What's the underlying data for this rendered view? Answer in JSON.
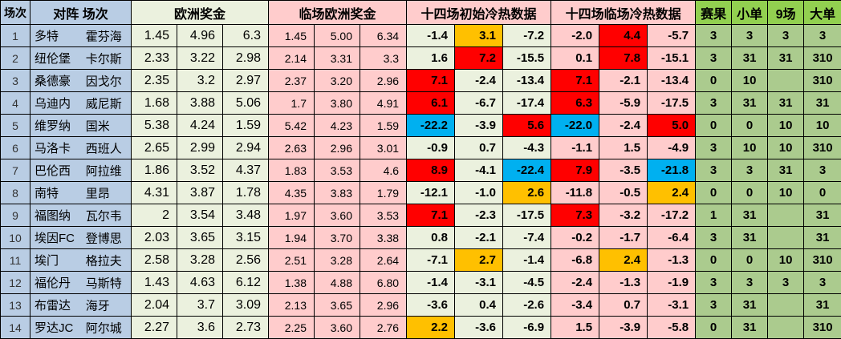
{
  "header": {
    "match_no": "场次",
    "matchup": "对阵 场次",
    "euro_odds": "欧洲奖金",
    "live_euro_odds": "临场欧洲奖金",
    "initial_cold_hot": "十四场初始冷热数据",
    "live_cold_hot": "十四场临场冷热数据",
    "result": "赛果",
    "small_single": "小单",
    "nine_games": "9场",
    "big_single": "大单"
  },
  "colors": {
    "header_blue": "#B9CDE4",
    "light_green": "#EBF1DE",
    "pink": "#FFCCCC",
    "bright_green_header": "#92D050",
    "green_data": "#ABCB8E",
    "highlight_red": "#FF0000",
    "highlight_orange": "#FFC000",
    "highlight_blue": "#00B0F0",
    "corner_mark_green": "#1E7145"
  },
  "rows": [
    {
      "no": "1",
      "home": "多特",
      "away": "霍芬海",
      "euro": [
        "1.45",
        "4.96",
        "6.3"
      ],
      "live_euro": [
        "1.45",
        "5.00",
        "6.34"
      ],
      "init": [
        {
          "v": "-1.4"
        },
        {
          "v": "3.1",
          "bg": "orange"
        },
        {
          "v": "-7.2"
        }
      ],
      "live": [
        {
          "v": "-2.0"
        },
        {
          "v": "4.4",
          "bg": "red"
        },
        {
          "v": "-5.7"
        }
      ],
      "result": "3",
      "small": {
        "v": "3",
        "mark": true
      },
      "nine": "3",
      "big": {
        "v": "3",
        "mark": true
      }
    },
    {
      "no": "2",
      "home": "纽伦堡",
      "away": "卡尔斯",
      "euro": [
        "2.33",
        "3.22",
        "2.98"
      ],
      "live_euro": [
        "2.14",
        "3.31",
        "3.3"
      ],
      "init": [
        {
          "v": "1.6"
        },
        {
          "v": "7.2",
          "bg": "red"
        },
        {
          "v": "-15.5"
        }
      ],
      "live": [
        {
          "v": "0.1"
        },
        {
          "v": "7.8",
          "bg": "red"
        },
        {
          "v": "-15.1"
        }
      ],
      "result": "3",
      "small": {
        "v": "31",
        "mark": true
      },
      "nine": "31",
      "big": {
        "v": "310",
        "mark": true
      }
    },
    {
      "no": "3",
      "home": "桑德豪",
      "away": "因戈尔",
      "euro": [
        "2.35",
        "3.2",
        "2.97"
      ],
      "live_euro": [
        "2.37",
        "3.20",
        "2.96"
      ],
      "init": [
        {
          "v": "7.1",
          "bg": "red"
        },
        {
          "v": "-2.4"
        },
        {
          "v": "-13.4"
        }
      ],
      "live": [
        {
          "v": "7.1",
          "bg": "red"
        },
        {
          "v": "-2.1"
        },
        {
          "v": "-13.4"
        }
      ],
      "result": "0",
      "small": {
        "v": "10",
        "mark": true
      },
      "nine": "",
      "big": {
        "v": "310",
        "mark": true
      }
    },
    {
      "no": "4",
      "home": "乌迪内",
      "away": "威尼斯",
      "euro": [
        "1.68",
        "3.88",
        "5.06"
      ],
      "live_euro": [
        "1.7",
        "3.80",
        "4.91"
      ],
      "init": [
        {
          "v": "6.1",
          "bg": "red"
        },
        {
          "v": "-6.7"
        },
        {
          "v": "-17.4"
        }
      ],
      "live": [
        {
          "v": "6.3",
          "bg": "red"
        },
        {
          "v": "-5.9"
        },
        {
          "v": "-17.5"
        }
      ],
      "result": "3",
      "small": {
        "v": "31",
        "mark": true
      },
      "nine": "31",
      "big": {
        "v": "31",
        "mark": true
      }
    },
    {
      "no": "5",
      "home": "维罗纳",
      "away": "国米",
      "euro": [
        "5.38",
        "4.24",
        "1.59"
      ],
      "live_euro": [
        "5.42",
        "4.23",
        "1.59"
      ],
      "init": [
        {
          "v": "-22.2",
          "bg": "blue"
        },
        {
          "v": "-3.9"
        },
        {
          "v": "5.6",
          "bg": "red"
        }
      ],
      "live": [
        {
          "v": "-22.0",
          "bg": "blue"
        },
        {
          "v": "-2.4"
        },
        {
          "v": "5.0",
          "bg": "red"
        }
      ],
      "result": "0",
      "small": {
        "v": "0",
        "mark": true
      },
      "nine": "10",
      "big": {
        "v": "10",
        "mark": true
      }
    },
    {
      "no": "6",
      "home": "马洛卡",
      "away": "西班人",
      "euro": [
        "2.65",
        "2.99",
        "2.94"
      ],
      "live_euro": [
        "2.63",
        "2.96",
        "3.01"
      ],
      "init": [
        {
          "v": "-0.9"
        },
        {
          "v": "0.7"
        },
        {
          "v": "-4.3"
        }
      ],
      "live": [
        {
          "v": "-1.1"
        },
        {
          "v": "1.5"
        },
        {
          "v": "-4.9"
        }
      ],
      "result": "3",
      "small": {
        "v": "10",
        "mark": false
      },
      "nine": "10",
      "big": {
        "v": "310",
        "mark": true
      }
    },
    {
      "no": "7",
      "home": "巴伦西",
      "away": "阿拉维",
      "euro": [
        "1.86",
        "3.52",
        "4.37"
      ],
      "live_euro": [
        "1.83",
        "3.53",
        "4.6"
      ],
      "init": [
        {
          "v": "8.9",
          "bg": "red"
        },
        {
          "v": "-4.1"
        },
        {
          "v": "-22.4",
          "bg": "blue"
        }
      ],
      "live": [
        {
          "v": "7.9",
          "bg": "red"
        },
        {
          "v": "-3.5"
        },
        {
          "v": "-21.8",
          "bg": "blue"
        }
      ],
      "result": "3",
      "small": {
        "v": "3",
        "mark": true
      },
      "nine": "31",
      "big": {
        "v": "3",
        "mark": true
      }
    },
    {
      "no": "8",
      "home": "南特",
      "away": "里昂",
      "euro": [
        "4.31",
        "3.87",
        "1.78"
      ],
      "live_euro": [
        "4.35",
        "3.83",
        "1.79"
      ],
      "init": [
        {
          "v": "-12.1"
        },
        {
          "v": "-1.0"
        },
        {
          "v": "2.6",
          "bg": "orange"
        }
      ],
      "live": [
        {
          "v": "-11.8"
        },
        {
          "v": "-0.5"
        },
        {
          "v": "2.4",
          "bg": "orange"
        }
      ],
      "result": "0",
      "small": {
        "v": "0",
        "mark": true
      },
      "nine": "10",
      "big": {
        "v": "0",
        "mark": true
      }
    },
    {
      "no": "9",
      "home": "福图纳",
      "away": "瓦尔韦",
      "euro": [
        "2",
        "3.54",
        "3.48"
      ],
      "live_euro": [
        "1.97",
        "3.60",
        "3.53"
      ],
      "init": [
        {
          "v": "7.1",
          "bg": "red"
        },
        {
          "v": "-2.3"
        },
        {
          "v": "-17.5"
        }
      ],
      "live": [
        {
          "v": "7.3",
          "bg": "red"
        },
        {
          "v": "-3.2"
        },
        {
          "v": "-17.2"
        }
      ],
      "result": "1",
      "small": {
        "v": "31",
        "mark": true
      },
      "nine": "",
      "big": {
        "v": "31",
        "mark": true
      }
    },
    {
      "no": "10",
      "home": "埃因FC",
      "away": "登博思",
      "euro": [
        "2.03",
        "3.65",
        "3.15"
      ],
      "live_euro": [
        "1.94",
        "3.70",
        "3.38"
      ],
      "init": [
        {
          "v": "0.8"
        },
        {
          "v": "-2.1"
        },
        {
          "v": "-7.4"
        }
      ],
      "live": [
        {
          "v": "-0.2"
        },
        {
          "v": "-1.7"
        },
        {
          "v": "-6.4"
        }
      ],
      "result": "3",
      "small": {
        "v": "31",
        "mark": true
      },
      "nine": "",
      "big": {
        "v": "31",
        "mark": true
      }
    },
    {
      "no": "11",
      "home": "埃门",
      "away": "格拉夫",
      "euro": [
        "2.58",
        "3.28",
        "2.56"
      ],
      "live_euro": [
        "2.51",
        "3.28",
        "2.64"
      ],
      "init": [
        {
          "v": "-7.1"
        },
        {
          "v": "2.7",
          "bg": "orange"
        },
        {
          "v": "-1.4"
        }
      ],
      "live": [
        {
          "v": "-6.8"
        },
        {
          "v": "2.4",
          "bg": "orange"
        },
        {
          "v": "-1.3"
        }
      ],
      "result": "0",
      "small": {
        "v": "0",
        "mark": false
      },
      "nine": "10",
      "big": {
        "v": "310",
        "mark": true
      }
    },
    {
      "no": "12",
      "home": "福伦丹",
      "away": "马斯特",
      "euro": [
        "1.43",
        "4.63",
        "6.12"
      ],
      "live_euro": [
        "1.38",
        "4.88",
        "6.80"
      ],
      "init": [
        {
          "v": "-1.4"
        },
        {
          "v": "-3.1"
        },
        {
          "v": "-4.5"
        }
      ],
      "live": [
        {
          "v": "-2.4"
        },
        {
          "v": "-1.3"
        },
        {
          "v": "-1.9"
        }
      ],
      "result": "3",
      "small": {
        "v": "3",
        "mark": true
      },
      "nine": "3",
      "big": {
        "v": "3",
        "mark": true
      }
    },
    {
      "no": "13",
      "home": "布雷达",
      "away": "海牙",
      "euro": [
        "2.04",
        "3.7",
        "3.09"
      ],
      "live_euro": [
        "2.13",
        "3.65",
        "2.96"
      ],
      "init": [
        {
          "v": "-3.6"
        },
        {
          "v": "0.4"
        },
        {
          "v": "-2.6"
        }
      ],
      "live": [
        {
          "v": "-3.4"
        },
        {
          "v": "0.7"
        },
        {
          "v": "-3.1"
        }
      ],
      "result": "3",
      "small": {
        "v": "31",
        "mark": true
      },
      "nine": "",
      "big": {
        "v": "31",
        "mark": true
      }
    },
    {
      "no": "14",
      "home": "罗达JC",
      "away": "阿尔城",
      "euro": [
        "2.27",
        "3.6",
        "2.73"
      ],
      "live_euro": [
        "2.25",
        "3.60",
        "2.76"
      ],
      "init": [
        {
          "v": "2.2",
          "bg": "orange"
        },
        {
          "v": "-3.6"
        },
        {
          "v": "-6.9"
        }
      ],
      "live": [
        {
          "v": "1.5"
        },
        {
          "v": "-3.9"
        },
        {
          "v": "-5.8"
        }
      ],
      "result": "0",
      "small": {
        "v": "31",
        "mark": true
      },
      "nine": "",
      "big": {
        "v": "310",
        "mark": true
      }
    }
  ]
}
